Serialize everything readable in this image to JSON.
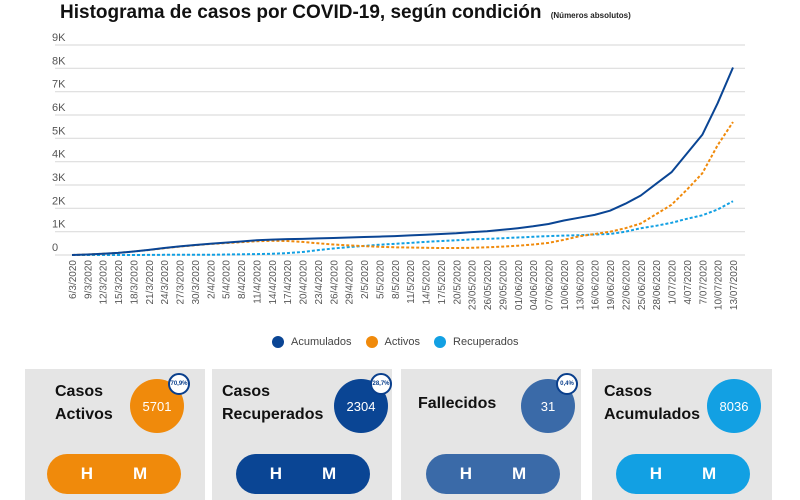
{
  "header": {
    "title": "Histograma de casos por COVID-19, según condición",
    "subtitle": "(Números absolutos)"
  },
  "chart_data": {
    "type": "line",
    "title": "Histograma de casos por COVID-19, según condición",
    "subtitle": "(Números absolutos)",
    "xlabel": "",
    "ylabel": "",
    "ylim": [
      0,
      9000
    ],
    "yticks": [
      0,
      1000,
      2000,
      3000,
      4000,
      5000,
      6000,
      7000,
      8000,
      9000
    ],
    "ytick_labels": [
      "0",
      "1K",
      "2K",
      "3K",
      "4K",
      "5K",
      "6K",
      "7K",
      "8K",
      "9K"
    ],
    "grid": true,
    "legend_position": "bottom",
    "x": [
      "6/3/2020",
      "9/3/2020",
      "12/3/2020",
      "15/3/2020",
      "18/3/2020",
      "21/3/2020",
      "24/3/2020",
      "27/3/2020",
      "30/3/2020",
      "2/4/2020",
      "5/4/2020",
      "8/4/2020",
      "11/4/2020",
      "14/4/2020",
      "17/4/2020",
      "20/4/2020",
      "23/4/2020",
      "26/4/2020",
      "29/4/2020",
      "2/5/2020",
      "5/5/2020",
      "8/5/2020",
      "11/5/2020",
      "14/5/2020",
      "17/5/2020",
      "20/5/2020",
      "23/05/2020",
      "26/05/2020",
      "29/05/2020",
      "01/06/2020",
      "04/06/2020",
      "07/06/2020",
      "10/06/2020",
      "13/06/2020",
      "16/06/2020",
      "19/06/2020",
      "22/06/2020",
      "25/06/2020",
      "28/06/2020",
      "1/07/2020",
      "4/07/2020",
      "7/07/2020",
      "10/07/2020",
      "13/07/2020"
    ],
    "series": [
      {
        "name": "Acumulados",
        "color": "#0a4594",
        "style": "solid",
        "values": [
          1,
          20,
          50,
          90,
          150,
          220,
          300,
          370,
          430,
          480,
          530,
          580,
          630,
          660,
          680,
          690,
          710,
          730,
          750,
          770,
          790,
          810,
          840,
          870,
          900,
          930,
          980,
          1020,
          1080,
          1150,
          1230,
          1330,
          1480,
          1600,
          1720,
          1900,
          2200,
          2550,
          3050,
          3550,
          4350,
          5150,
          6500,
          8036
        ]
      },
      {
        "name": "Activos",
        "color": "#f08a0b",
        "style": "dashed",
        "values": [
          1,
          20,
          50,
          90,
          150,
          215,
          290,
          360,
          420,
          470,
          510,
          550,
          590,
          610,
          600,
          560,
          500,
          450,
          410,
          380,
          350,
          330,
          320,
          310,
          300,
          300,
          310,
          330,
          360,
          400,
          450,
          520,
          650,
          800,
          900,
          1000,
          1150,
          1350,
          1750,
          2150,
          2800,
          3500,
          4700,
          5701
        ]
      },
      {
        "name": "Recuperados",
        "color": "#12a0e3",
        "style": "dashed",
        "values": [
          0,
          0,
          0,
          0,
          0,
          5,
          10,
          10,
          10,
          10,
          20,
          30,
          40,
          50,
          80,
          130,
          210,
          280,
          340,
          390,
          440,
          480,
          520,
          560,
          600,
          630,
          670,
          690,
          720,
          750,
          780,
          810,
          830,
          850,
          880,
          900,
          1000,
          1150,
          1250,
          1380,
          1550,
          1700,
          1950,
          2304
        ]
      }
    ]
  },
  "legend": [
    {
      "label": "Acumulados",
      "color": "#0a4594"
    },
    {
      "label": "Activos",
      "color": "#f08a0b"
    },
    {
      "label": "Recuperados",
      "color": "#12a0e3"
    }
  ],
  "cards": [
    {
      "title_line1": "Casos",
      "title_line2": "Activos",
      "value": "5701",
      "percent": "70,9%",
      "color": "#f08a0b",
      "h_label": "H",
      "m_label": "M"
    },
    {
      "title_line1": "Casos",
      "title_line2": "Recuperados",
      "value": "2304",
      "percent": "28,7%",
      "color": "#0a4594",
      "h_label": "H",
      "m_label": "M"
    },
    {
      "title_line1": "Fallecidos",
      "title_line2": "",
      "value": "31",
      "percent": "0,4%",
      "color": "#3a6aa8",
      "h_label": "H",
      "m_label": "M"
    },
    {
      "title_line1": "Casos",
      "title_line2": "Acumulados",
      "value": "8036",
      "percent": "",
      "color": "#12a0e3",
      "h_label": "H",
      "m_label": "M"
    }
  ]
}
